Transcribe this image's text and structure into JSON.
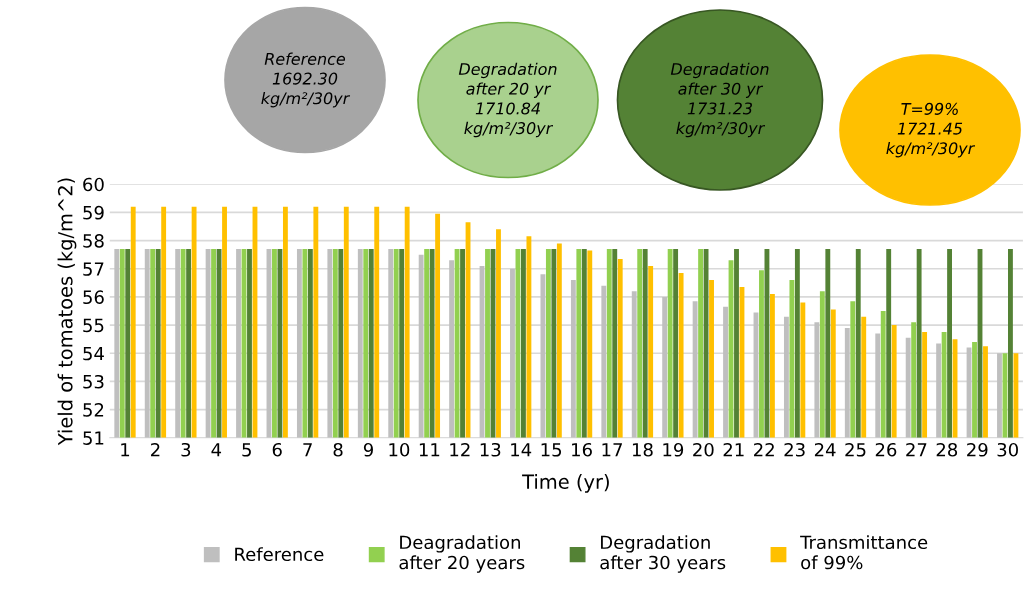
{
  "chart_data": {
    "type": "bar",
    "xlabel": "Time (yr)",
    "ylabel": "Yield of tomatoes (kg/m^2)",
    "categories": [
      "1",
      "2",
      "3",
      "4",
      "5",
      "6",
      "7",
      "8",
      "9",
      "10",
      "11",
      "12",
      "13",
      "14",
      "15",
      "16",
      "17",
      "18",
      "19",
      "20",
      "21",
      "22",
      "23",
      "24",
      "25",
      "26",
      "27",
      "28",
      "29",
      "30"
    ],
    "series": [
      {
        "name": "Reference",
        "color": "#bfbfbf",
        "values": [
          57.7,
          57.7,
          57.7,
          57.7,
          57.7,
          57.7,
          57.7,
          57.7,
          57.7,
          57.7,
          57.5,
          57.3,
          57.1,
          57.0,
          56.8,
          56.6,
          56.4,
          56.2,
          56.0,
          55.85,
          55.65,
          55.45,
          55.3,
          55.1,
          54.9,
          54.7,
          54.55,
          54.35,
          54.2,
          54.0
        ]
      },
      {
        "name": "Deagradation\nafter 20 years",
        "color": "#92d050",
        "values": [
          57.7,
          57.7,
          57.7,
          57.7,
          57.7,
          57.7,
          57.7,
          57.7,
          57.7,
          57.7,
          57.7,
          57.7,
          57.7,
          57.7,
          57.7,
          57.7,
          57.7,
          57.7,
          57.7,
          57.7,
          57.3,
          56.95,
          56.6,
          56.2,
          55.85,
          55.5,
          55.1,
          54.75,
          54.4,
          54.0
        ]
      },
      {
        "name": "Degradation\nafter 30 years",
        "color": "#548235",
        "values": [
          57.7,
          57.7,
          57.7,
          57.7,
          57.7,
          57.7,
          57.7,
          57.7,
          57.7,
          57.7,
          57.7,
          57.7,
          57.7,
          57.7,
          57.7,
          57.7,
          57.7,
          57.7,
          57.7,
          57.7,
          57.7,
          57.7,
          57.7,
          57.7,
          57.7,
          57.7,
          57.7,
          57.7,
          57.7,
          57.7
        ]
      },
      {
        "name": "Transmittance\nof 99%",
        "color": "#ffc000",
        "values": [
          59.2,
          59.2,
          59.2,
          59.2,
          59.2,
          59.2,
          59.2,
          59.2,
          59.2,
          59.2,
          58.95,
          58.65,
          58.4,
          58.15,
          57.9,
          57.65,
          57.35,
          57.1,
          56.85,
          56.6,
          56.35,
          56.1,
          55.8,
          55.55,
          55.3,
          55.0,
          54.75,
          54.5,
          54.25,
          54.0
        ]
      }
    ],
    "ylim": [
      51,
      60
    ],
    "yticks": [
      51,
      52,
      53,
      54,
      55,
      56,
      57,
      58,
      59,
      60
    ],
    "grid": "y",
    "legend": "bottom",
    "annotations": [
      "Reference\n1692.30\nkg/m²/30yr",
      "Degradation\nafter 20 yr\n1710.84\nkg/m²/30yr",
      "Degradation\nafter 30 yr\n1731.23\nkg/m²/30yr",
      "T=99%\n1721.45\nkg/m²/30yr"
    ]
  }
}
